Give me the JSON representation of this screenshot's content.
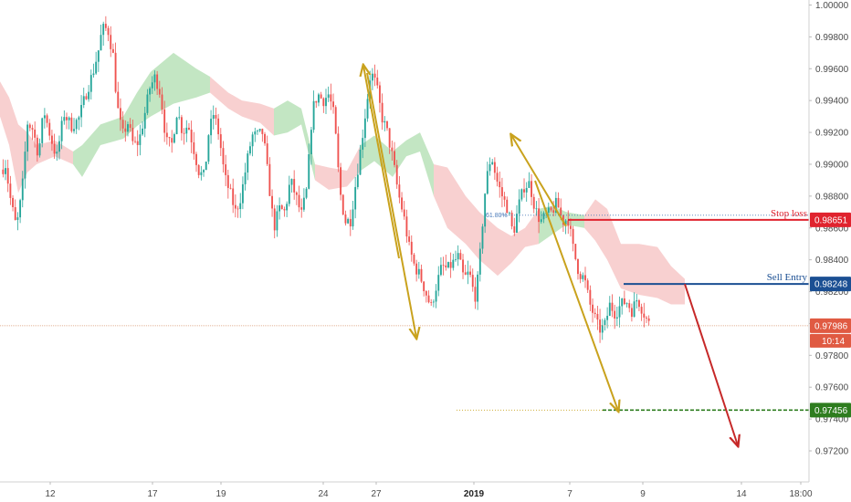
{
  "chart_data": {
    "type": "candlestick",
    "y_ticks": [
      "1.00000",
      "0.99800",
      "0.99600",
      "0.99400",
      "0.99200",
      "0.99000",
      "0.98800",
      "0.98600",
      "0.98400",
      "0.98200",
      "0.98000",
      "0.97800",
      "0.97600",
      "0.97400",
      "0.97200"
    ],
    "y_tick_values": [
      1.0,
      0.998,
      0.996,
      0.994,
      0.992,
      0.99,
      0.988,
      0.986,
      0.984,
      0.982,
      0.98,
      0.978,
      0.976,
      0.974,
      0.972
    ],
    "ylim": [
      0.9703,
      1.0008
    ],
    "x_ticks": [
      {
        "label": "12",
        "bold": false
      },
      {
        "label": "17",
        "bold": false
      },
      {
        "label": "19",
        "bold": false
      },
      {
        "label": "24",
        "bold": false
      },
      {
        "label": "27",
        "bold": false
      },
      {
        "label": "2019",
        "bold": true
      },
      {
        "label": "7",
        "bold": false
      },
      {
        "label": "9",
        "bold": false
      },
      {
        "label": "14",
        "bold": false
      },
      {
        "label": "18:00",
        "bold": false
      }
    ],
    "bar_count": 265,
    "price_path": [
      [
        0,
        0.9895
      ],
      [
        6,
        0.99
      ],
      [
        12,
        0.9876
      ],
      [
        18,
        0.986
      ],
      [
        24,
        0.9882
      ],
      [
        30,
        0.9926
      ],
      [
        36,
        0.9922
      ],
      [
        42,
        0.9906
      ],
      [
        48,
        0.9934
      ],
      [
        55,
        0.9918
      ],
      [
        62,
        0.9904
      ],
      [
        70,
        0.9932
      ],
      [
        78,
        0.9924
      ],
      [
        86,
        0.9928
      ],
      [
        94,
        0.9944
      ],
      [
        102,
        0.9958
      ],
      [
        108,
        0.9972
      ],
      [
        112,
        0.9985
      ],
      [
        118,
        0.9985
      ],
      [
        124,
        0.9968
      ],
      [
        128,
        0.9938
      ],
      [
        134,
        0.9918
      ],
      [
        140,
        0.9926
      ],
      [
        146,
        0.9912
      ],
      [
        152,
        0.9914
      ],
      [
        158,
        0.993
      ],
      [
        164,
        0.9948
      ],
      [
        170,
        0.9955
      ],
      [
        176,
        0.9944
      ],
      [
        182,
        0.9914
      ],
      [
        188,
        0.9912
      ],
      [
        194,
        0.9934
      ],
      [
        200,
        0.992
      ],
      [
        206,
        0.9925
      ],
      [
        212,
        0.991
      ],
      [
        218,
        0.9895
      ],
      [
        224,
        0.9892
      ],
      [
        228,
        0.9918
      ],
      [
        234,
        0.9932
      ],
      [
        240,
        0.9918
      ],
      [
        246,
        0.9892
      ],
      [
        252,
        0.9882
      ],
      [
        258,
        0.987
      ],
      [
        264,
        0.988
      ],
      [
        270,
        0.99
      ],
      [
        276,
        0.9918
      ],
      [
        282,
        0.9918
      ],
      [
        288,
        0.992
      ],
      [
        294,
        0.989
      ],
      [
        300,
        0.986
      ],
      [
        306,
        0.9872
      ],
      [
        312,
        0.987
      ],
      [
        318,
        0.989
      ],
      [
        324,
        0.988
      ],
      [
        330,
        0.9868
      ],
      [
        336,
        0.9884
      ],
      [
        342,
        0.9934
      ],
      [
        348,
        0.9944
      ],
      [
        354,
        0.994
      ],
      [
        360,
        0.9944
      ],
      [
        366,
        0.993
      ],
      [
        372,
        0.9884
      ],
      [
        378,
        0.9864
      ],
      [
        384,
        0.9865
      ],
      [
        390,
        0.989
      ],
      [
        396,
        0.9914
      ],
      [
        402,
        0.994
      ],
      [
        406,
        0.9958
      ],
      [
        412,
        0.995
      ],
      [
        418,
        0.993
      ],
      [
        424,
        0.992
      ],
      [
        430,
        0.9904
      ],
      [
        436,
        0.9882
      ],
      [
        442,
        0.9868
      ],
      [
        448,
        0.9848
      ],
      [
        454,
        0.9836
      ],
      [
        460,
        0.983
      ],
      [
        466,
        0.982
      ],
      [
        472,
        0.981
      ],
      [
        478,
        0.9824
      ],
      [
        484,
        0.9836
      ],
      [
        490,
        0.9834
      ],
      [
        496,
        0.9838
      ],
      [
        502,
        0.9842
      ],
      [
        508,
        0.9828
      ],
      [
        514,
        0.9832
      ],
      [
        520,
        0.9816
      ],
      [
        524,
        0.983
      ],
      [
        528,
        0.986
      ],
      [
        532,
        0.9888
      ],
      [
        538,
        0.9906
      ],
      [
        544,
        0.989
      ],
      [
        550,
        0.988
      ],
      [
        556,
        0.9872
      ],
      [
        562,
        0.9856
      ],
      [
        568,
        0.9874
      ],
      [
        574,
        0.9886
      ],
      [
        580,
        0.9888
      ],
      [
        586,
        0.9872
      ],
      [
        592,
        0.9864
      ],
      [
        598,
        0.9868
      ],
      [
        604,
        0.987
      ],
      [
        610,
        0.9876
      ],
      [
        616,
        0.9864
      ],
      [
        622,
        0.9866
      ],
      [
        628,
        0.9846
      ],
      [
        634,
        0.9832
      ],
      [
        640,
        0.9828
      ],
      [
        646,
        0.9812
      ],
      [
        650,
        0.9806
      ],
      [
        656,
        0.9796
      ],
      [
        662,
        0.9798
      ],
      [
        668,
        0.9812
      ],
      [
        674,
        0.9806
      ],
      [
        680,
        0.9812
      ],
      [
        686,
        0.9814
      ],
      [
        692,
        0.9808
      ],
      [
        698,
        0.9816
      ],
      [
        704,
        0.9808
      ],
      [
        710,
        0.98
      ]
    ],
    "current_price": "0.97986",
    "countdown": "10:14",
    "levels": {
      "stop_loss": {
        "label": "Stop loss",
        "value": "0.98651",
        "price": 0.98651,
        "color": "#e0232e"
      },
      "sell_entry": {
        "label": "Sell Entry",
        "value": "0.98248",
        "price": 0.98248,
        "color": "#1b4f93"
      },
      "take_profit": {
        "value": "0.97456",
        "price": 0.97456,
        "color": "#2e7d1f"
      },
      "fib": {
        "label": "61.80%",
        "price": 0.9868
      }
    },
    "colors": {
      "bull": "#26a69a",
      "bear": "#ef5350",
      "cloud_bull": "#b9e2b9",
      "cloud_bear": "#f7c8c8",
      "arrow_gold": "#c9a21d",
      "arrow_red": "#c62828",
      "current_line": "#d89a76",
      "badge_current": "#e05a42"
    }
  }
}
